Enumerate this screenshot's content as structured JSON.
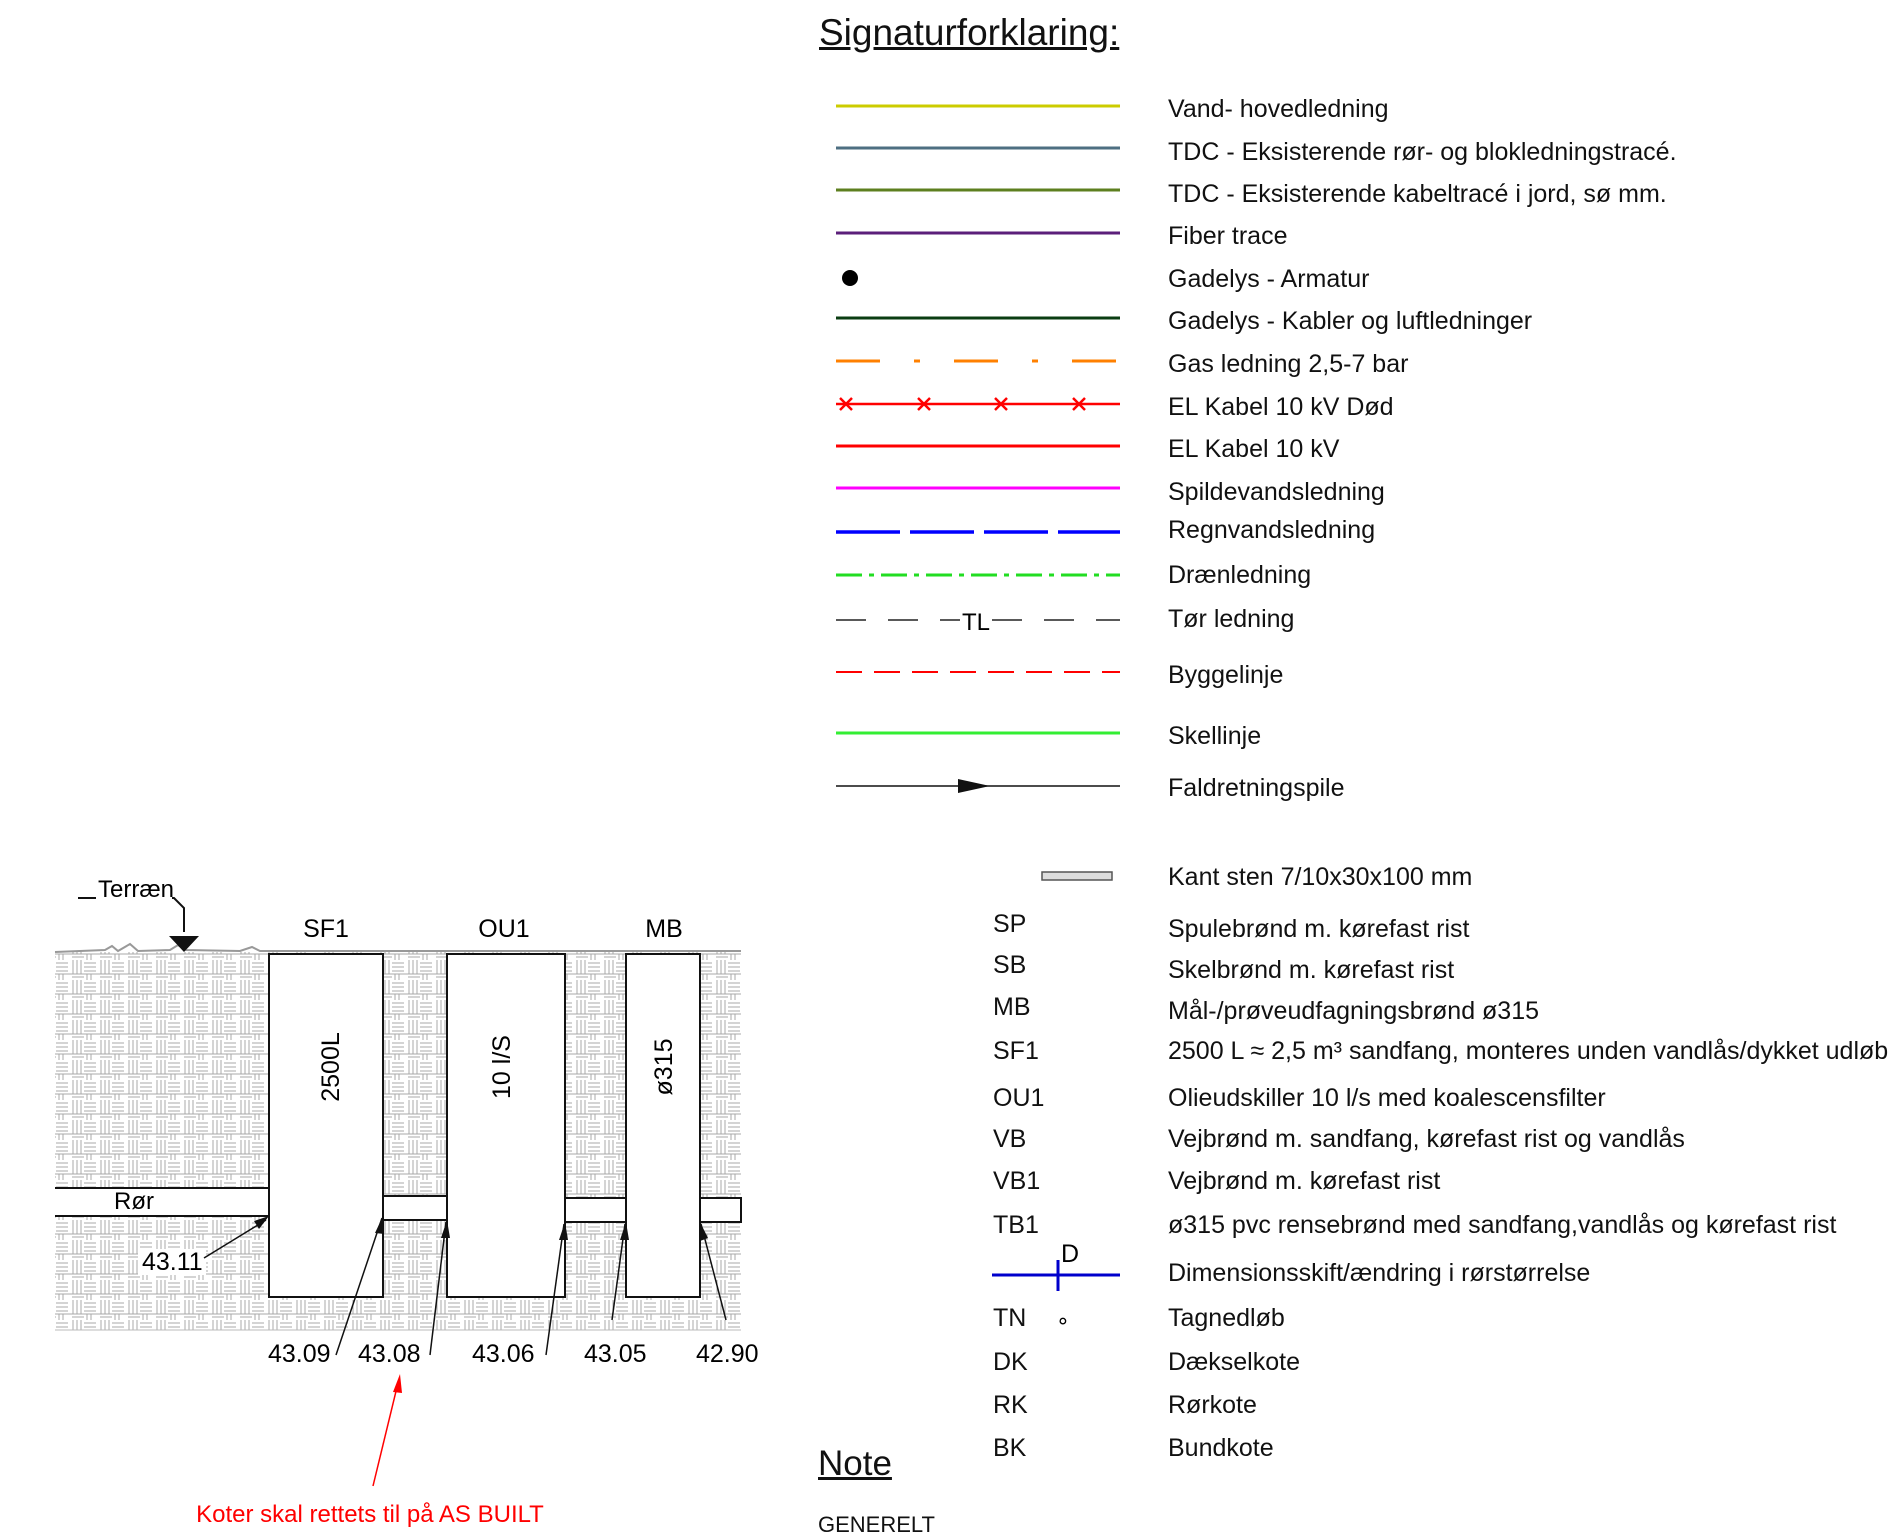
{
  "legend": {
    "title": "Signaturforklaring:",
    "line_items": [
      {
        "label": "Vand- hovedledning",
        "color": "#cccc00",
        "icon": "solid-line"
      },
      {
        "label": "TDC - Eksisterende rør- og blokledningstracé.",
        "color": "#4e6f82",
        "icon": "solid-line"
      },
      {
        "label": "TDC - Eksisterende  kabeltracé i jord, sø mm.",
        "color": "#5d7f1f",
        "icon": "solid-line"
      },
      {
        "label": "Fiber trace",
        "color": "#5b1f7a",
        "icon": "solid-line"
      },
      {
        "label": "Gadelys - Armatur",
        "color": "#000000",
        "icon": "dot-symbol"
      },
      {
        "label": "Gadelys - Kabler og luftledninger",
        "color": "#0b3d12",
        "icon": "solid-line"
      },
      {
        "label": "Gas ledning 2,5-7 bar",
        "color": "#ff8000",
        "icon": "dash-dot-line"
      },
      {
        "label": "EL Kabel 10 kV Død",
        "color": "#ff0000",
        "icon": "crossed-line"
      },
      {
        "label": "EL Kabel 10 kV",
        "color": "#ff0000",
        "icon": "solid-line"
      },
      {
        "label": "Spildevandsledning",
        "color": "#ff00ff",
        "icon": "solid-line"
      },
      {
        "label": "Regnvandsledning",
        "color": "#0000ff",
        "icon": "long-dash-line"
      },
      {
        "label": "Drænledning",
        "color": "#22dd22",
        "icon": "dash-dot-line"
      },
      {
        "label": "Tør ledning",
        "color": "#222222",
        "icon": "dashed-line",
        "mark": "TL"
      },
      {
        "label": "Byggelinje",
        "color": "#ff0000",
        "icon": "dashed-line"
      },
      {
        "label": "Skellinje",
        "color": "#33ee33",
        "icon": "solid-line"
      },
      {
        "label": "Faldretningspile",
        "color": "#000000",
        "icon": "arrow-line"
      }
    ],
    "kantsten_label": "Kant sten 7/10x30x100 mm",
    "code_items": [
      {
        "code": "SP",
        "label": "Spulebrønd m. kørefast rist"
      },
      {
        "code": "SB",
        "label": "Skelbrønd m. kørefast rist"
      },
      {
        "code": "MB",
        "label": "Mål-/prøveudfagningsbrønd ø315"
      },
      {
        "code": "SF1",
        "label": "2500 L ≈ 2,5 m³ sandfang, monteres unden vandlås/dykket udløb"
      },
      {
        "code": "OU1",
        "label": "Olieudskiller 10 l/s med koalescensfilter"
      },
      {
        "code": "VB",
        "label": "Vejbrønd m. sandfang, kørefast rist og vandlås"
      },
      {
        "code": "VB1",
        "label": "Vejbrønd m. kørefast rist"
      },
      {
        "code": "TB1",
        "label": "ø315 pvc rensebrønd med sandfang,vandlås og kørefast rist"
      },
      {
        "code": "",
        "label": "Dimensionsskift/ændring i rørstørrelse",
        "symbol": "D",
        "color": "#0000cc"
      },
      {
        "code": "TN",
        "label": "Tagnedløb",
        "symbol": "∘"
      },
      {
        "code": "DK",
        "label": "Dækselkote"
      },
      {
        "code": "RK",
        "label": "Rørkote"
      },
      {
        "code": "BK",
        "label": "Bundkote"
      }
    ]
  },
  "section": {
    "terrain_label": "Terræn",
    "pipe_label": "Rør",
    "wells": [
      {
        "name": "SF1",
        "content": "2500L"
      },
      {
        "name": "OU1",
        "content": "10 l/S"
      },
      {
        "name": "MB",
        "content": "ø315"
      }
    ],
    "inlet_level": "43.11",
    "bottom_levels": [
      "43.09",
      "43.08",
      "43.06",
      "43.05",
      "42.90"
    ],
    "as_built_note": "Koter skal rettets til på AS BUILT",
    "note_color": "#ff0000",
    "ground_color": "#9a9a9a"
  },
  "note": {
    "title": "Note",
    "first_heading": "GENERELT"
  }
}
